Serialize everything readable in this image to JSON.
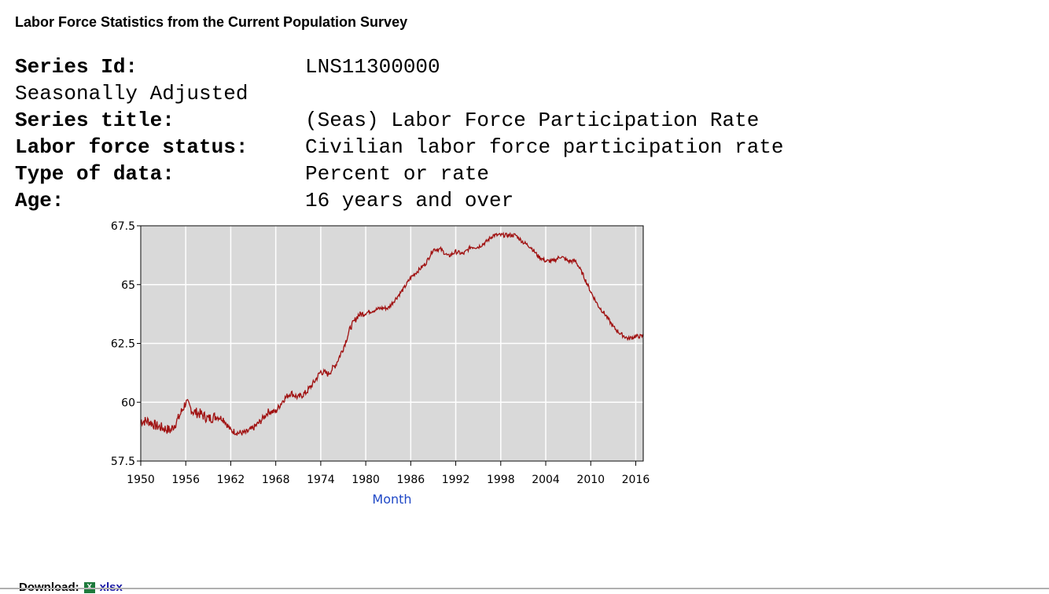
{
  "page": {
    "title": "Labor Force Statistics from the Current Population Survey"
  },
  "series_info": [
    {
      "key": "Series Id:",
      "value": "LNS11300000",
      "bold": true
    },
    {
      "key": "Seasonally Adjusted",
      "value": "",
      "bold": false
    },
    {
      "key": "Series title:",
      "value": "(Seas) Labor Force Participation Rate",
      "bold": true
    },
    {
      "key": "Labor force status:",
      "value": "Civilian labor force participation rate",
      "bold": true
    },
    {
      "key": "Type of data:",
      "value": "Percent or rate",
      "bold": true
    },
    {
      "key": "Age:",
      "value": "16 years and over",
      "bold": true
    }
  ],
  "download": {
    "label": "Download:",
    "icon": "excel-icon",
    "link_text": "xlsx"
  },
  "chart_data": {
    "type": "line",
    "title": "",
    "xlabel": "Month",
    "ylabel": "",
    "xlim": [
      1950,
      2017
    ],
    "ylim": [
      57.5,
      67.5
    ],
    "x_ticks": [
      1950,
      1956,
      1962,
      1968,
      1974,
      1980,
      1986,
      1992,
      1998,
      2004,
      2010,
      2016
    ],
    "y_ticks": [
      57.5,
      60,
      62.5,
      65,
      67.5
    ],
    "y_tick_labels": [
      "57.5",
      "60",
      "62.5",
      "65",
      "67.5"
    ],
    "grid": true,
    "background": "#d9d9d9",
    "grid_color": "#ffffff",
    "line_color": "#a01010",
    "series": [
      {
        "x": [
          1950,
          1951,
          1952,
          1953,
          1954,
          1955,
          1956,
          1957,
          1958,
          1959,
          1960,
          1961,
          1962,
          1963,
          1964,
          1965,
          1966,
          1967,
          1968,
          1969,
          1970,
          1971,
          1972,
          1973,
          1974,
          1975,
          1976,
          1977,
          1978,
          1979,
          1980,
          1981,
          1982,
          1983,
          1984,
          1985,
          1986,
          1987,
          1988,
          1989,
          1990,
          1991,
          1992,
          1993,
          1994,
          1995,
          1996,
          1997,
          1998,
          1999,
          2000,
          2001,
          2002,
          2003,
          2004,
          2005,
          2006,
          2007,
          2008,
          2009,
          2010,
          2011,
          2012,
          2013,
          2014,
          2015,
          2016,
          2017
        ],
        "y": [
          59.2,
          59.2,
          59.0,
          58.9,
          58.8,
          59.3,
          60.0,
          59.6,
          59.5,
          59.3,
          59.4,
          59.3,
          58.8,
          58.7,
          58.7,
          58.9,
          59.2,
          59.6,
          59.6,
          60.1,
          60.4,
          60.2,
          60.4,
          60.8,
          61.3,
          61.2,
          61.6,
          62.3,
          63.2,
          63.7,
          63.8,
          63.9,
          64.0,
          64.0,
          64.4,
          64.8,
          65.3,
          65.6,
          65.9,
          66.5,
          66.5,
          66.2,
          66.4,
          66.3,
          66.6,
          66.6,
          66.8,
          67.1,
          67.1,
          67.1,
          67.1,
          66.8,
          66.6,
          66.2,
          66.0,
          66.0,
          66.2,
          66.0,
          66.0,
          65.4,
          64.7,
          64.1,
          63.7,
          63.2,
          62.9,
          62.7,
          62.8,
          62.8
        ]
      }
    ]
  }
}
